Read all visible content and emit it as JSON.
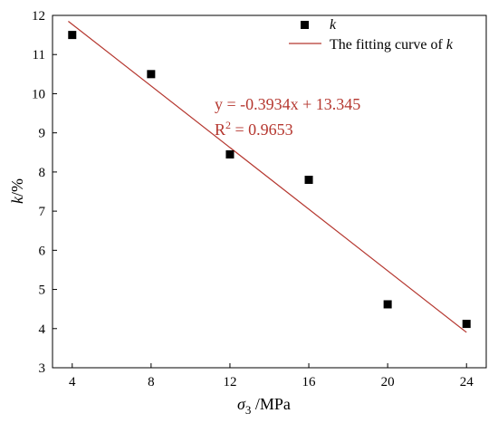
{
  "chart_data": {
    "type": "scatter",
    "x": [
      4,
      8,
      12,
      16,
      20,
      24
    ],
    "y": [
      11.5,
      10.5,
      8.45,
      7.8,
      4.62,
      4.12
    ],
    "xlim": [
      3,
      25
    ],
    "ylim": [
      3,
      12
    ],
    "xticks": [
      "4",
      "8",
      "12",
      "16",
      "20",
      "24"
    ],
    "yticks": [
      "3",
      "4",
      "5",
      "6",
      "7",
      "8",
      "9",
      "10",
      "11",
      "12"
    ],
    "xlabel": {
      "symbol": "σ",
      "sub": "3",
      "unit": " /MPa"
    },
    "ylabel": {
      "symbol": "k",
      "unit": "/%"
    },
    "series": [
      {
        "name": "k",
        "marker": "square",
        "color": "#000000"
      }
    ],
    "fit": {
      "name": "The fitting curve of k",
      "slope": -0.3934,
      "intercept": 13.345,
      "x_range": [
        3.8,
        24
      ],
      "color": "#b5372f",
      "equation": "y = -0.3934x + 13.345",
      "r2_prefix": "R",
      "r2_sup": "2",
      "r2_value": " = 0.9653"
    },
    "legend": {
      "position": "top-right",
      "items": [
        {
          "symbol": "k",
          "suffix": ""
        },
        {
          "text": "The fitting curve of ",
          "symbol": "k"
        }
      ]
    },
    "grid": false
  }
}
